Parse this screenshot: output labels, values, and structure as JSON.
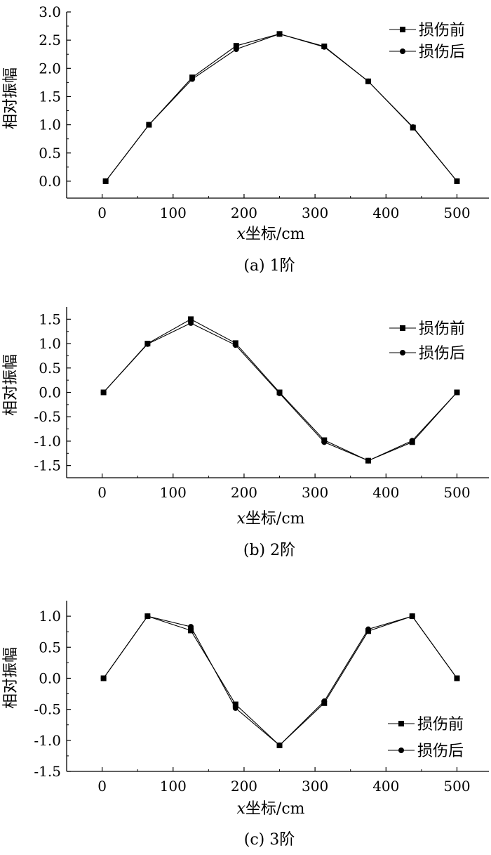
{
  "chart_data": [
    {
      "type": "line",
      "caption": "(a) 1阶",
      "xlabel": {
        "italic": "x",
        "rest": "坐标/cm"
      },
      "ylabel": "相对振幅",
      "xlim": [
        -50,
        545
      ],
      "ylim": [
        -0.3,
        3.0
      ],
      "xticks": [
        0,
        100,
        200,
        300,
        400,
        500
      ],
      "yticks": [
        0.0,
        0.5,
        1.0,
        1.5,
        2.0,
        2.5,
        3.0
      ],
      "ytick_labels": [
        "0.0",
        "0.5",
        "1.0",
        "1.5",
        "2.0",
        "2.5",
        "3.0"
      ],
      "x": [
        5,
        66,
        127,
        189,
        250,
        313,
        375,
        438,
        500
      ],
      "series": [
        {
          "name": "损伤前",
          "marker": "square",
          "values": [
            0.0,
            1.0,
            1.84,
            2.4,
            2.61,
            2.39,
            1.77,
            0.95,
            0.0
          ]
        },
        {
          "name": "损伤后",
          "marker": "circle",
          "values": [
            0.0,
            1.0,
            1.81,
            2.34,
            2.61,
            2.38,
            1.77,
            0.96,
            0.0
          ]
        }
      ],
      "legend_position": "top-right"
    },
    {
      "type": "line",
      "caption": "(b) 2阶",
      "xlabel": {
        "italic": "x",
        "rest": "坐标/cm"
      },
      "ylabel": "相对振幅",
      "xlim": [
        -50,
        545
      ],
      "ylim": [
        -1.75,
        1.75
      ],
      "xticks": [
        0,
        100,
        200,
        300,
        400,
        500
      ],
      "yticks": [
        -1.5,
        -1.0,
        -0.5,
        0.0,
        0.5,
        1.0,
        1.5
      ],
      "ytick_labels": [
        "-1.5",
        "-1.0",
        "-0.5",
        "0.0",
        "0.5",
        "1.0",
        "1.5"
      ],
      "x": [
        2,
        64,
        125,
        188,
        250,
        313,
        375,
        437,
        500
      ],
      "series": [
        {
          "name": "损伤前",
          "marker": "square",
          "values": [
            0.0,
            1.0,
            1.5,
            1.01,
            0.0,
            -0.98,
            -1.4,
            -1.02,
            0.0
          ]
        },
        {
          "name": "损伤后",
          "marker": "circle",
          "values": [
            0.0,
            0.99,
            1.42,
            0.97,
            -0.02,
            -1.02,
            -1.4,
            -0.99,
            0.0
          ]
        }
      ],
      "legend_position": "top-right"
    },
    {
      "type": "line",
      "caption": "(c) 3阶",
      "xlabel": {
        "italic": "x",
        "rest": "坐标/cm"
      },
      "ylabel": "相对振幅",
      "xlim": [
        -50,
        545
      ],
      "ylim": [
        -1.5,
        1.25
      ],
      "xticks": [
        0,
        100,
        200,
        300,
        400,
        500
      ],
      "yticks": [
        -1.5,
        -1.0,
        -0.5,
        0.0,
        0.5,
        1.0
      ],
      "ytick_labels": [
        "-1.5",
        "-1.0",
        "-0.5",
        "0.0",
        "0.5",
        "1.0"
      ],
      "x": [
        2,
        64,
        125,
        188,
        250,
        313,
        375,
        437,
        500
      ],
      "series": [
        {
          "name": "损伤前",
          "marker": "square",
          "values": [
            0.0,
            1.0,
            0.77,
            -0.42,
            -1.08,
            -0.4,
            0.76,
            1.0,
            0.0
          ]
        },
        {
          "name": "损伤后",
          "marker": "circle",
          "values": [
            0.0,
            1.0,
            0.83,
            -0.48,
            -1.08,
            -0.37,
            0.79,
            1.0,
            0.0
          ]
        }
      ],
      "legend_position": "bottom-right"
    }
  ]
}
